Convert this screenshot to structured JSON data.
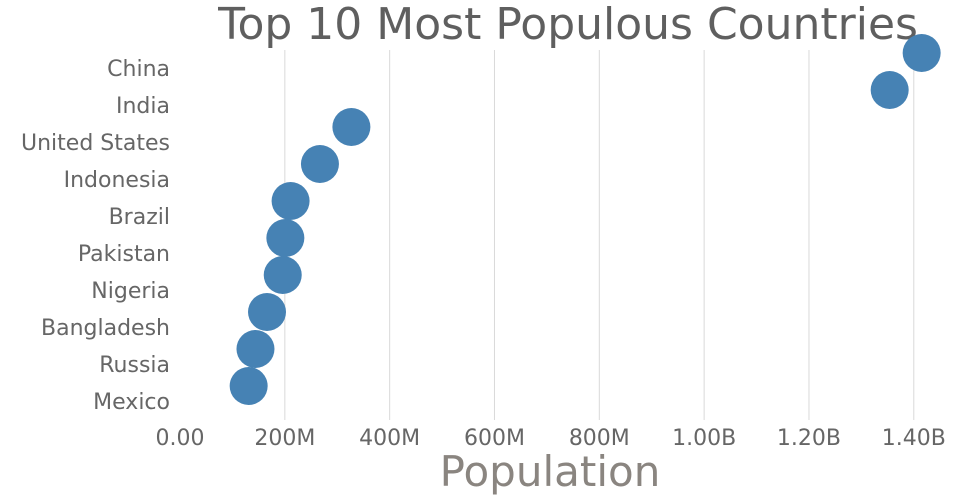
{
  "chart_data": {
    "type": "scatter",
    "title": "Top 10 Most Populous Countries",
    "xlabel": "Population",
    "ylabel": "",
    "xlim": [
      0,
      1450000000
    ],
    "x_ticks": [
      0,
      200000000,
      400000000,
      600000000,
      800000000,
      1000000000,
      1200000000,
      1400000000
    ],
    "x_tick_labels": [
      "0.00",
      "200M",
      "400M",
      "600M",
      "800M",
      "1.00B",
      "1.20B",
      "1.40B"
    ],
    "categories": [
      "China",
      "India",
      "United States",
      "Indonesia",
      "Brazil",
      "Pakistan",
      "Nigeria",
      "Bangladesh",
      "Russia",
      "Mexico"
    ],
    "values": [
      1415000000,
      1354000000,
      327000000,
      267000000,
      211000000,
      201000000,
      196000000,
      166000000,
      144000000,
      131000000
    ],
    "marker_color": "#4682b4",
    "grid": "vertical",
    "legend": "none"
  }
}
